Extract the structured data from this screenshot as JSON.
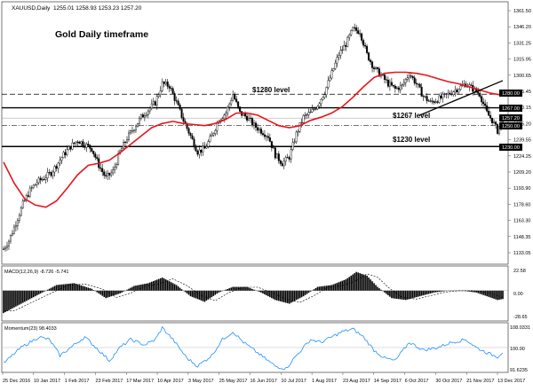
{
  "header": {
    "symbol": "XAUUSD,Daily",
    "ohlc": "1255.01 1258.93 1253.23 1257.20",
    "annotation_title": "Gold Daily timeframe"
  },
  "price_panel": {
    "y_ticks": [
      "1361.50",
      "1346.20",
      "1331.25",
      "1315.95",
      "1300.65",
      "1285.45",
      "1270.15",
      "1255.20",
      "1239.55",
      "1224.25",
      "1209.20",
      "1193.90",
      "1178.60",
      "1163.30",
      "1148.35",
      "1133.05"
    ],
    "levels": [
      {
        "label": "$1280 level",
        "value": 1280,
        "tag": "1280.00",
        "style": "dashed"
      },
      {
        "label": "$1267 level",
        "value": 1267,
        "tag": "1267.00",
        "style": "solid"
      },
      {
        "label": "$1230 level",
        "value": 1230,
        "tag": "1230.00",
        "style": "solid"
      }
    ],
    "current_price_tag": "1257.20",
    "dashdot_tag": "1250.00",
    "ma_color": "#e8141c",
    "trendline_color": "#000000"
  },
  "macd_panel": {
    "title": "MACD(12,26,9) -8.726 -5.741",
    "y_ticks": [
      "22.58",
      "0.00",
      "-28.65"
    ]
  },
  "momentum_panel": {
    "title": "Momentum(23) 98.4033",
    "y_ticks": [
      "108.0331",
      "100.00",
      "91.6235"
    ],
    "line_color": "#1e90ff"
  },
  "x_axis": {
    "labels": [
      "25 Dec 2016",
      "10 Jan 2017",
      "1 Feb 2017",
      "23 Feb 2017",
      "17 Mar 2017",
      "10 Apr 2017",
      "3 May 2017",
      "25 May 2017",
      "16 Jun 2017",
      "10 Jul 2017",
      "1 Aug 2017",
      "23 Aug 2017",
      "14 Sep 2017",
      "6 Oct 2017",
      "30 Oct 2017",
      "21 Nov 2017",
      "13 Dec 2017"
    ]
  },
  "chart_data": {
    "type": "candlestick",
    "title": "Gold Daily timeframe",
    "symbol": "XAUUSD,Daily",
    "timeframe": "Daily",
    "price_range": [
      1120,
      1365
    ],
    "price_path": [
      [
        0,
        1132
      ],
      [
        3,
        1140
      ],
      [
        7,
        1157
      ],
      [
        11,
        1175
      ],
      [
        15,
        1188
      ],
      [
        19,
        1196
      ],
      [
        23,
        1200
      ],
      [
        27,
        1205
      ],
      [
        30,
        1212
      ],
      [
        34,
        1222
      ],
      [
        38,
        1230
      ],
      [
        42,
        1236
      ],
      [
        46,
        1232
      ],
      [
        50,
        1228
      ],
      [
        54,
        1212
      ],
      [
        58,
        1200
      ],
      [
        62,
        1206
      ],
      [
        66,
        1225
      ],
      [
        70,
        1238
      ],
      [
        74,
        1248
      ],
      [
        78,
        1258
      ],
      [
        82,
        1265
      ],
      [
        86,
        1272
      ],
      [
        90,
        1290
      ],
      [
        94,
        1288
      ],
      [
        98,
        1272
      ],
      [
        102,
        1255
      ],
      [
        106,
        1240
      ],
      [
        110,
        1225
      ],
      [
        114,
        1228
      ],
      [
        118,
        1240
      ],
      [
        122,
        1256
      ],
      [
        126,
        1262
      ],
      [
        130,
        1280
      ],
      [
        134,
        1262
      ],
      [
        138,
        1258
      ],
      [
        142,
        1250
      ],
      [
        146,
        1245
      ],
      [
        150,
        1240
      ],
      [
        154,
        1222
      ],
      [
        158,
        1214
      ],
      [
        162,
        1220
      ],
      [
        166,
        1242
      ],
      [
        170,
        1258
      ],
      [
        174,
        1262
      ],
      [
        178,
        1270
      ],
      [
        182,
        1282
      ],
      [
        186,
        1300
      ],
      [
        190,
        1318
      ],
      [
        194,
        1328
      ],
      [
        198,
        1342
      ],
      [
        202,
        1340
      ],
      [
        206,
        1318
      ],
      [
        210,
        1305
      ],
      [
        214,
        1298
      ],
      [
        218,
        1290
      ],
      [
        222,
        1285
      ],
      [
        226,
        1288
      ],
      [
        230,
        1300
      ],
      [
        234,
        1290
      ],
      [
        238,
        1278
      ],
      [
        242,
        1272
      ],
      [
        246,
        1275
      ],
      [
        250,
        1278
      ],
      [
        254,
        1282
      ],
      [
        258,
        1286
      ],
      [
        262,
        1290
      ],
      [
        266,
        1285
      ],
      [
        270,
        1280
      ],
      [
        274,
        1262
      ],
      [
        277,
        1255
      ],
      [
        280,
        1245
      ],
      [
        283,
        1257
      ]
    ],
    "moving_average": [
      [
        0,
        1215
      ],
      [
        6,
        1195
      ],
      [
        12,
        1180
      ],
      [
        18,
        1174
      ],
      [
        24,
        1172
      ],
      [
        30,
        1178
      ],
      [
        36,
        1190
      ],
      [
        42,
        1203
      ],
      [
        48,
        1212
      ],
      [
        54,
        1214
      ],
      [
        60,
        1217
      ],
      [
        66,
        1224
      ],
      [
        72,
        1232
      ],
      [
        78,
        1240
      ],
      [
        84,
        1248
      ],
      [
        90,
        1252
      ],
      [
        96,
        1254
      ],
      [
        102,
        1252
      ],
      [
        108,
        1251
      ],
      [
        114,
        1250
      ],
      [
        120,
        1252
      ],
      [
        126,
        1256
      ],
      [
        132,
        1262
      ],
      [
        138,
        1262
      ],
      [
        144,
        1260
      ],
      [
        150,
        1255
      ],
      [
        156,
        1250
      ],
      [
        162,
        1248
      ],
      [
        168,
        1250
      ],
      [
        174,
        1255
      ],
      [
        180,
        1258
      ],
      [
        186,
        1262
      ],
      [
        192,
        1268
      ],
      [
        198,
        1277
      ],
      [
        204,
        1287
      ],
      [
        210,
        1296
      ],
      [
        216,
        1300
      ],
      [
        222,
        1301
      ],
      [
        228,
        1301
      ],
      [
        234,
        1300
      ],
      [
        240,
        1298
      ],
      [
        246,
        1295
      ],
      [
        252,
        1292
      ],
      [
        258,
        1290
      ],
      [
        264,
        1287
      ],
      [
        270,
        1284
      ],
      [
        276,
        1281
      ],
      [
        283,
        1279
      ]
    ],
    "macd": [
      [
        0,
        -24
      ],
      [
        10,
        -14
      ],
      [
        20,
        -4
      ],
      [
        30,
        6
      ],
      [
        40,
        8
      ],
      [
        50,
        2
      ],
      [
        58,
        -8
      ],
      [
        66,
        -3
      ],
      [
        74,
        5
      ],
      [
        82,
        8
      ],
      [
        90,
        14
      ],
      [
        98,
        6
      ],
      [
        106,
        -6
      ],
      [
        114,
        -12
      ],
      [
        122,
        -2
      ],
      [
        130,
        4
      ],
      [
        138,
        4
      ],
      [
        146,
        -2
      ],
      [
        154,
        -10
      ],
      [
        162,
        -14
      ],
      [
        170,
        -6
      ],
      [
        178,
        4
      ],
      [
        186,
        6
      ],
      [
        194,
        12
      ],
      [
        200,
        20
      ],
      [
        206,
        16
      ],
      [
        212,
        4
      ],
      [
        220,
        -8
      ],
      [
        228,
        -10
      ],
      [
        236,
        -6
      ],
      [
        244,
        -2
      ],
      [
        252,
        0
      ],
      [
        260,
        0
      ],
      [
        268,
        -2
      ],
      [
        274,
        -6
      ],
      [
        280,
        -10
      ],
      [
        283,
        -9
      ]
    ],
    "macd_range": [
      -28.65,
      22.58
    ],
    "momentum": [
      [
        0,
        94
      ],
      [
        10,
        100
      ],
      [
        20,
        104
      ],
      [
        26,
        103
      ],
      [
        32,
        97
      ],
      [
        40,
        101
      ],
      [
        46,
        104
      ],
      [
        54,
        99
      ],
      [
        60,
        95
      ],
      [
        66,
        100
      ],
      [
        72,
        103
      ],
      [
        80,
        101
      ],
      [
        86,
        103
      ],
      [
        90,
        107.5
      ],
      [
        96,
        103
      ],
      [
        104,
        96
      ],
      [
        110,
        93
      ],
      [
        118,
        97
      ],
      [
        124,
        103
      ],
      [
        130,
        106
      ],
      [
        136,
        102
      ],
      [
        142,
        99
      ],
      [
        148,
        96
      ],
      [
        154,
        93
      ],
      [
        160,
        92
      ],
      [
        166,
        97
      ],
      [
        174,
        103
      ],
      [
        180,
        102
      ],
      [
        186,
        104
      ],
      [
        192,
        106
      ],
      [
        198,
        107
      ],
      [
        204,
        104
      ],
      [
        210,
        99
      ],
      [
        216,
        96
      ],
      [
        222,
        95
      ],
      [
        230,
        102
      ],
      [
        238,
        99
      ],
      [
        246,
        100
      ],
      [
        254,
        102
      ],
      [
        262,
        103
      ],
      [
        268,
        100
      ],
      [
        274,
        98
      ],
      [
        280,
        96.5
      ],
      [
        283,
        98.4
      ]
    ],
    "momentum_range": [
      91.6235,
      108.0331
    ],
    "momentum_reference": 100,
    "trendline": [
      [
        236,
        1260
      ],
      [
        283,
        1293
      ]
    ]
  }
}
